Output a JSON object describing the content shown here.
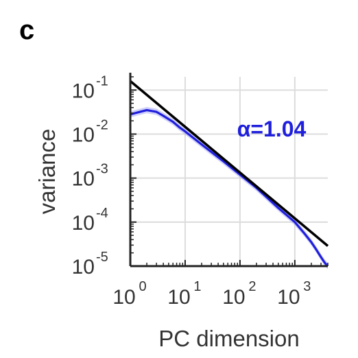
{
  "panel_label": "c",
  "chart_data": {
    "type": "line",
    "xlabel": "PC dimension",
    "ylabel": "variance",
    "xscale": "log",
    "yscale": "log",
    "xlim": [
      1,
      4000
    ],
    "ylim": [
      1e-05,
      0.2
    ],
    "grid": true,
    "x_ticks": [
      {
        "base": "10",
        "exp": "0"
      },
      {
        "base": "10",
        "exp": "1"
      },
      {
        "base": "10",
        "exp": "2"
      },
      {
        "base": "10",
        "exp": "3"
      }
    ],
    "y_ticks": [
      {
        "base": "10",
        "exp": "-1"
      },
      {
        "base": "10",
        "exp": "-2"
      },
      {
        "base": "10",
        "exp": "-3"
      },
      {
        "base": "10",
        "exp": "-4"
      },
      {
        "base": "10",
        "exp": "-5"
      }
    ],
    "annotation": {
      "symbol": "α",
      "text": "=1.04"
    },
    "colors": {
      "data": "#1f1fdc",
      "fit": "#000000",
      "band": "#a9a9f5",
      "annotation": "#1f1fdc",
      "grid": "#dcdcdc"
    },
    "series": [
      {
        "kind": "data",
        "x": [
          1,
          1.5,
          2,
          3,
          4,
          6,
          8,
          10,
          20,
          50,
          100,
          200,
          500,
          1000,
          1500,
          2000,
          2500,
          3000,
          3500,
          4000
        ],
        "y": [
          0.028,
          0.032,
          0.035,
          0.032,
          0.026,
          0.019,
          0.014,
          0.0115,
          0.0058,
          0.0024,
          0.0012,
          0.0006,
          0.00021,
          0.0001,
          5.5e-05,
          3.5e-05,
          2.3e-05,
          1.6e-05,
          1.2e-05,
          1e-05
        ]
      },
      {
        "kind": "fit",
        "exponent": 1.04,
        "x": [
          1,
          4000
        ],
        "y": [
          0.16,
          2.87e-05
        ]
      }
    ]
  }
}
